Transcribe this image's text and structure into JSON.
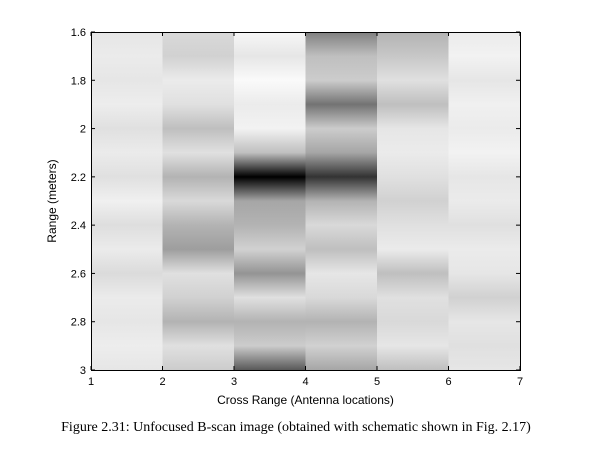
{
  "chart_data": {
    "type": "heatmap",
    "colormap": "grayscale (white = low, black = high)",
    "xlabel": "Cross Range (Antenna locations)",
    "ylabel": "Range (meters)",
    "xlim": [
      1,
      7
    ],
    "ylim": [
      3,
      1.6
    ],
    "y_axis_reversed": true,
    "x_ticks": [
      "1",
      "2",
      "3",
      "4",
      "5",
      "6",
      "7"
    ],
    "y_ticks": [
      "1.6",
      "1.8",
      "2",
      "2.2",
      "2.4",
      "2.6",
      "2.8",
      "3"
    ],
    "columns": [
      {
        "x_start": 1,
        "x_end": 2,
        "antenna": 1,
        "profile": [
          {
            "range": 1.6,
            "intensity": 0.1
          },
          {
            "range": 1.7,
            "intensity": 0.08
          },
          {
            "range": 1.8,
            "intensity": 0.1
          },
          {
            "range": 1.9,
            "intensity": 0.07
          },
          {
            "range": 2.0,
            "intensity": 0.12
          },
          {
            "range": 2.1,
            "intensity": 0.08
          },
          {
            "range": 2.2,
            "intensity": 0.12
          },
          {
            "range": 2.3,
            "intensity": 0.06
          },
          {
            "range": 2.4,
            "intensity": 0.13
          },
          {
            "range": 2.5,
            "intensity": 0.08
          },
          {
            "range": 2.6,
            "intensity": 0.14
          },
          {
            "range": 2.7,
            "intensity": 0.08
          },
          {
            "range": 2.8,
            "intensity": 0.1
          },
          {
            "range": 2.9,
            "intensity": 0.07
          },
          {
            "range": 3.0,
            "intensity": 0.1
          }
        ]
      },
      {
        "x_start": 2,
        "x_end": 3,
        "antenna": 2,
        "profile": [
          {
            "range": 1.6,
            "intensity": 0.15
          },
          {
            "range": 1.7,
            "intensity": 0.18
          },
          {
            "range": 1.8,
            "intensity": 0.08
          },
          {
            "range": 1.9,
            "intensity": 0.12
          },
          {
            "range": 2.0,
            "intensity": 0.25
          },
          {
            "range": 2.1,
            "intensity": 0.12
          },
          {
            "range": 2.2,
            "intensity": 0.3
          },
          {
            "range": 2.3,
            "intensity": 0.15
          },
          {
            "range": 2.4,
            "intensity": 0.3
          },
          {
            "range": 2.5,
            "intensity": 0.38
          },
          {
            "range": 2.6,
            "intensity": 0.12
          },
          {
            "range": 2.7,
            "intensity": 0.18
          },
          {
            "range": 2.8,
            "intensity": 0.3
          },
          {
            "range": 2.9,
            "intensity": 0.12
          },
          {
            "range": 3.0,
            "intensity": 0.2
          }
        ]
      },
      {
        "x_start": 3,
        "x_end": 4,
        "antenna": 3,
        "profile": [
          {
            "range": 1.6,
            "intensity": 0.03
          },
          {
            "range": 1.7,
            "intensity": 0.1
          },
          {
            "range": 1.8,
            "intensity": 0.02
          },
          {
            "range": 1.9,
            "intensity": 0.08
          },
          {
            "range": 2.0,
            "intensity": 0.05
          },
          {
            "range": 2.1,
            "intensity": 0.25
          },
          {
            "range": 2.2,
            "intensity": 1.0
          },
          {
            "range": 2.3,
            "intensity": 0.35
          },
          {
            "range": 2.4,
            "intensity": 0.3
          },
          {
            "range": 2.5,
            "intensity": 0.18
          },
          {
            "range": 2.6,
            "intensity": 0.42
          },
          {
            "range": 2.7,
            "intensity": 0.12
          },
          {
            "range": 2.8,
            "intensity": 0.3
          },
          {
            "range": 2.9,
            "intensity": 0.2
          },
          {
            "range": 3.0,
            "intensity": 0.65
          }
        ]
      },
      {
        "x_start": 4,
        "x_end": 5,
        "antenna": 4,
        "profile": [
          {
            "range": 1.6,
            "intensity": 0.5
          },
          {
            "range": 1.7,
            "intensity": 0.25
          },
          {
            "range": 1.8,
            "intensity": 0.2
          },
          {
            "range": 1.9,
            "intensity": 0.55
          },
          {
            "range": 2.0,
            "intensity": 0.2
          },
          {
            "range": 2.1,
            "intensity": 0.35
          },
          {
            "range": 2.2,
            "intensity": 0.8
          },
          {
            "range": 2.3,
            "intensity": 0.3
          },
          {
            "range": 2.4,
            "intensity": 0.15
          },
          {
            "range": 2.5,
            "intensity": 0.25
          },
          {
            "range": 2.6,
            "intensity": 0.1
          },
          {
            "range": 2.7,
            "intensity": 0.15
          },
          {
            "range": 2.8,
            "intensity": 0.3
          },
          {
            "range": 2.9,
            "intensity": 0.18
          },
          {
            "range": 3.0,
            "intensity": 0.35
          }
        ]
      },
      {
        "x_start": 5,
        "x_end": 6,
        "antenna": 5,
        "profile": [
          {
            "range": 1.6,
            "intensity": 0.3
          },
          {
            "range": 1.7,
            "intensity": 0.22
          },
          {
            "range": 1.8,
            "intensity": 0.12
          },
          {
            "range": 1.9,
            "intensity": 0.25
          },
          {
            "range": 2.0,
            "intensity": 0.1
          },
          {
            "range": 2.1,
            "intensity": 0.08
          },
          {
            "range": 2.2,
            "intensity": 0.12
          },
          {
            "range": 2.3,
            "intensity": 0.18
          },
          {
            "range": 2.4,
            "intensity": 0.12
          },
          {
            "range": 2.5,
            "intensity": 0.08
          },
          {
            "range": 2.6,
            "intensity": 0.25
          },
          {
            "range": 2.7,
            "intensity": 0.12
          },
          {
            "range": 2.8,
            "intensity": 0.15
          },
          {
            "range": 2.9,
            "intensity": 0.1
          },
          {
            "range": 3.0,
            "intensity": 0.25
          }
        ]
      },
      {
        "x_start": 6,
        "x_end": 7,
        "antenna": 6,
        "profile": [
          {
            "range": 1.6,
            "intensity": 0.08
          },
          {
            "range": 1.7,
            "intensity": 0.05
          },
          {
            "range": 1.8,
            "intensity": 0.1
          },
          {
            "range": 1.9,
            "intensity": 0.06
          },
          {
            "range": 2.0,
            "intensity": 0.08
          },
          {
            "range": 2.1,
            "intensity": 0.05
          },
          {
            "range": 2.2,
            "intensity": 0.1
          },
          {
            "range": 2.3,
            "intensity": 0.08
          },
          {
            "range": 2.4,
            "intensity": 0.12
          },
          {
            "range": 2.5,
            "intensity": 0.08
          },
          {
            "range": 2.6,
            "intensity": 0.1
          },
          {
            "range": 2.7,
            "intensity": 0.18
          },
          {
            "range": 2.8,
            "intensity": 0.1
          },
          {
            "range": 2.9,
            "intensity": 0.12
          },
          {
            "range": 3.0,
            "intensity": 0.1
          }
        ]
      }
    ],
    "grid": false,
    "legend": "none"
  },
  "caption": "Figure 2.31: Unfocused B-scan image (obtained with schematic shown in Fig. 2.17)"
}
